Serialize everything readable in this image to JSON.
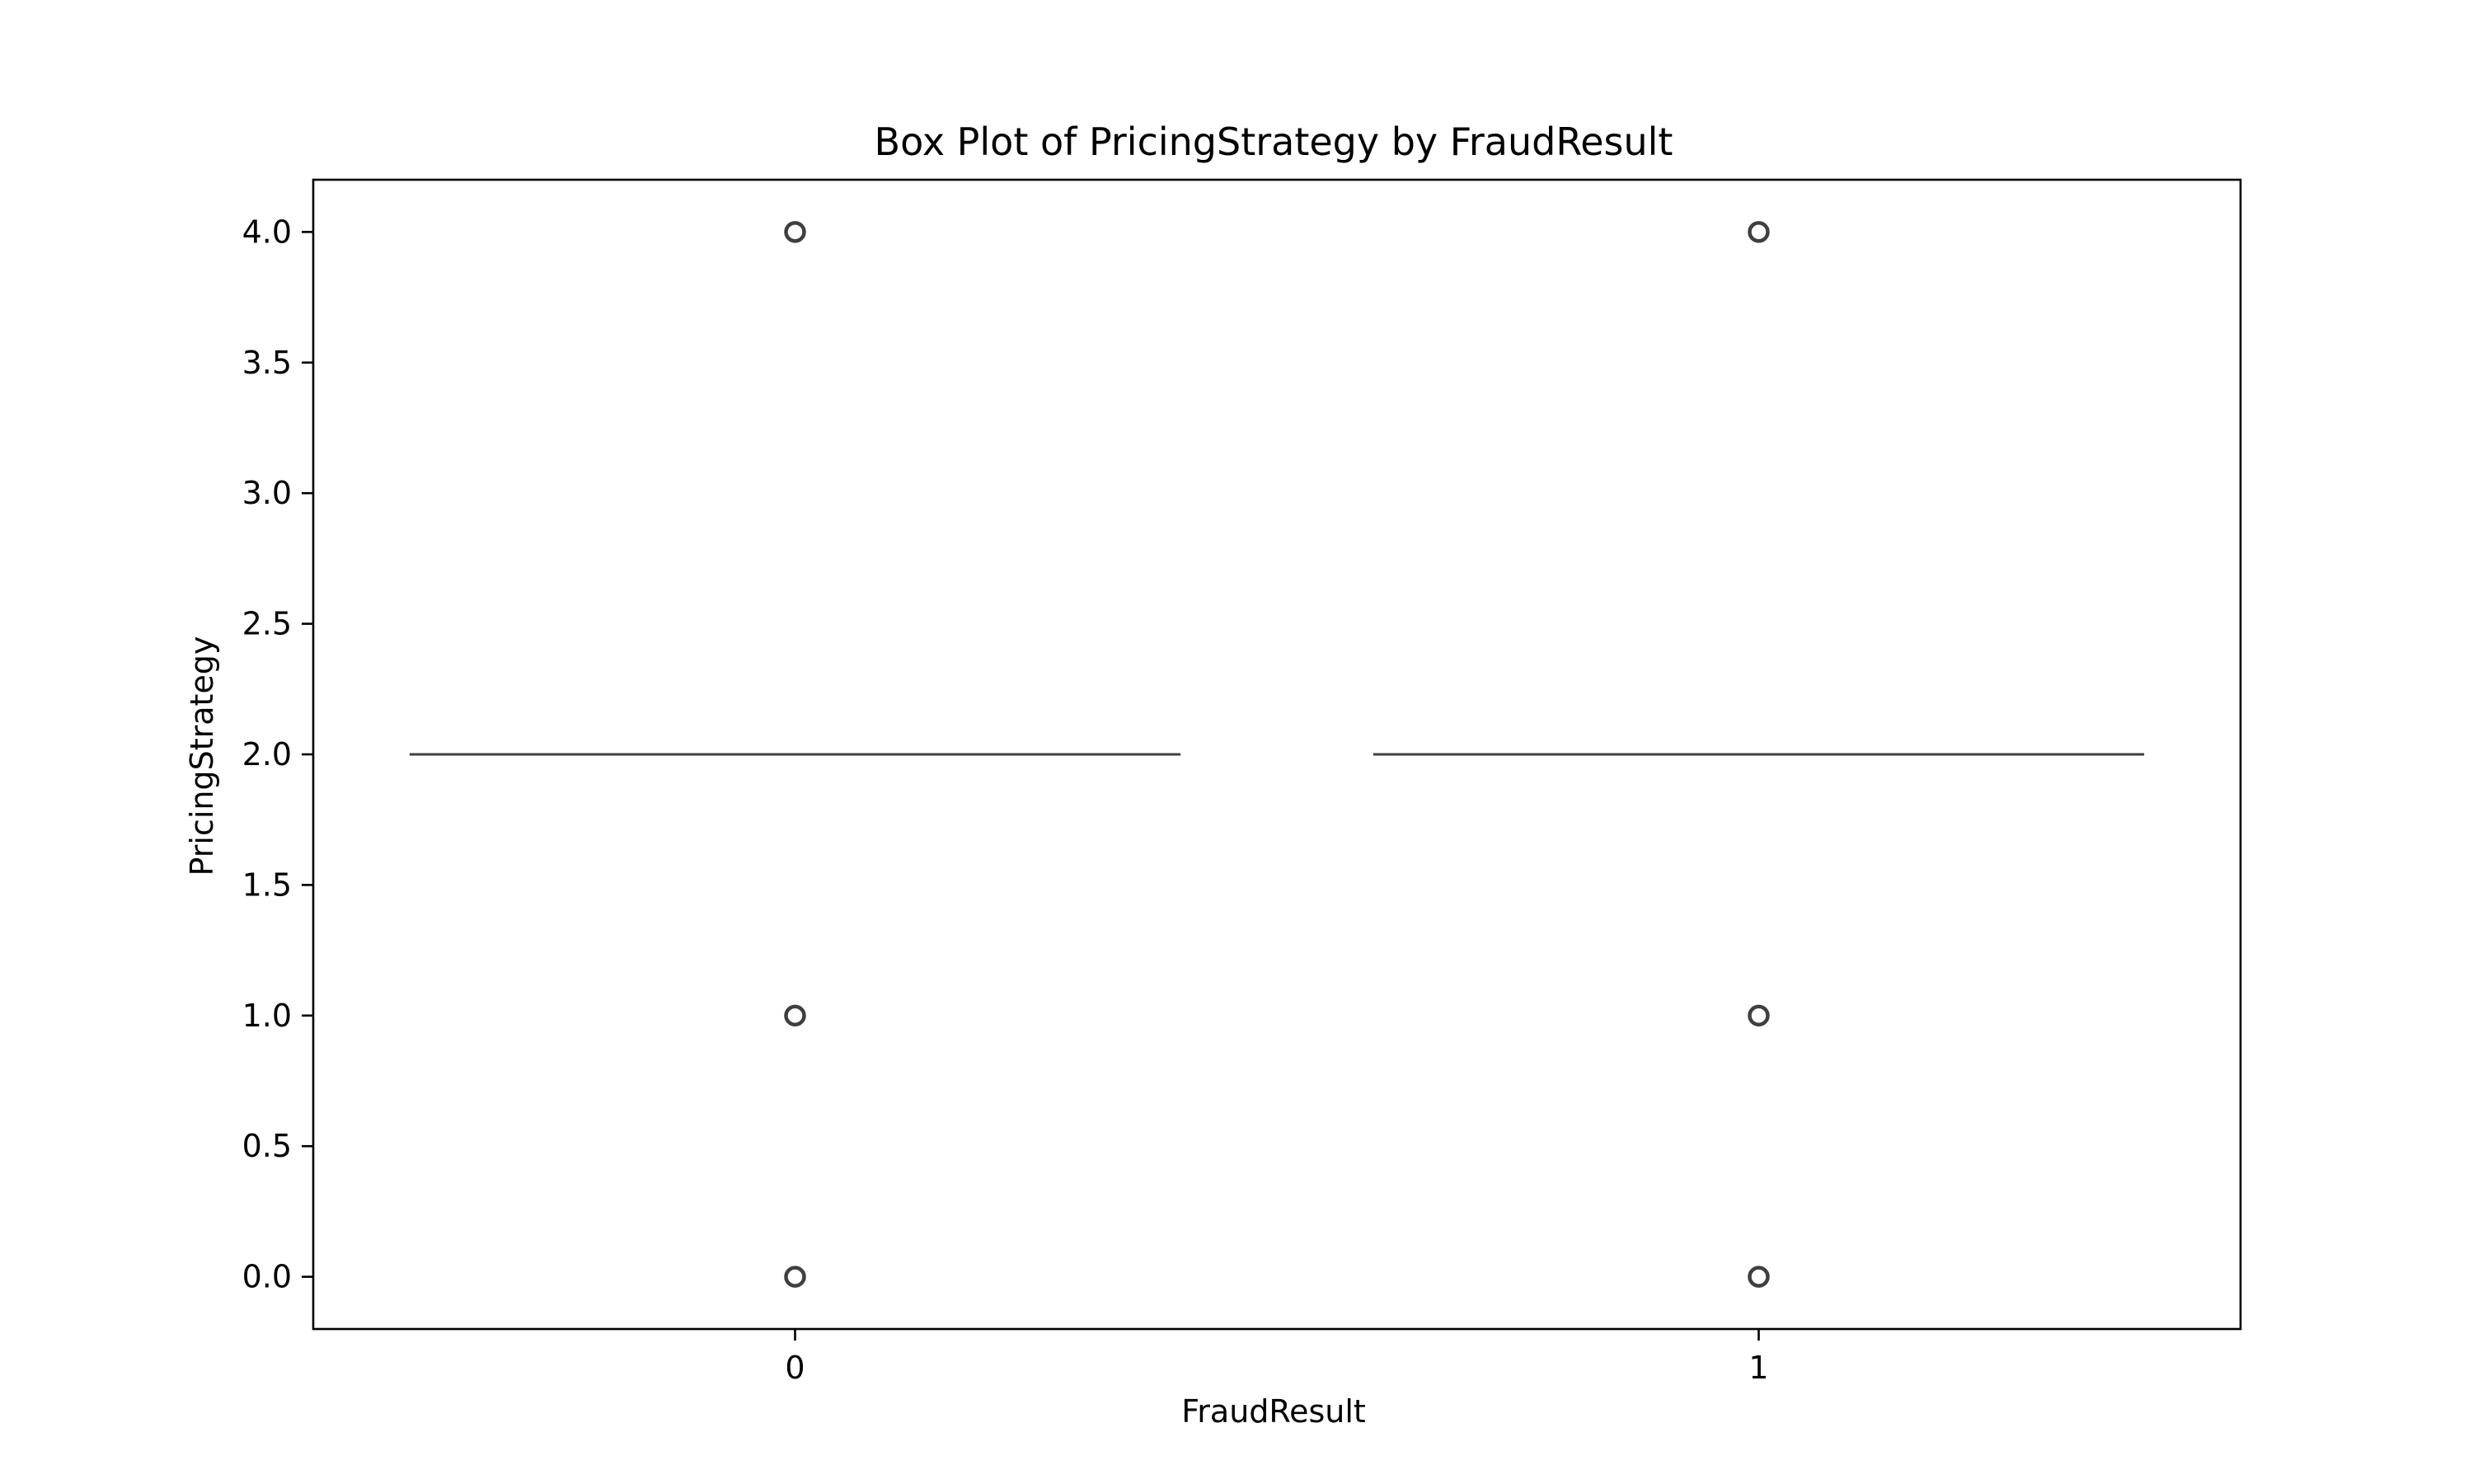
{
  "chart_data": {
    "type": "box",
    "title": "Box Plot of PricingStrategy by FraudResult",
    "xlabel": "FraudResult",
    "ylabel": "PricingStrategy",
    "categories": [
      "0",
      "1"
    ],
    "ylim": [
      -0.2,
      4.2
    ],
    "yticks": [
      0.0,
      0.5,
      1.0,
      1.5,
      2.0,
      2.5,
      3.0,
      3.5,
      4.0
    ],
    "ytick_labels": [
      "0.0",
      "0.5",
      "1.0",
      "1.5",
      "2.0",
      "2.5",
      "3.0",
      "3.5",
      "4.0"
    ],
    "grid": false,
    "boxes": [
      {
        "category": "0",
        "q1": 2.0,
        "median": 2.0,
        "q3": 2.0,
        "whisker_low": 2.0,
        "whisker_high": 2.0,
        "outliers": [
          0.0,
          1.0,
          4.0
        ]
      },
      {
        "category": "1",
        "q1": 2.0,
        "median": 2.0,
        "q3": 2.0,
        "whisker_low": 2.0,
        "whisker_high": 2.0,
        "outliers": [
          0.0,
          1.0,
          4.0
        ]
      }
    ],
    "colors": {
      "box_line": "#3f3f3f",
      "frame": "#000000"
    }
  }
}
